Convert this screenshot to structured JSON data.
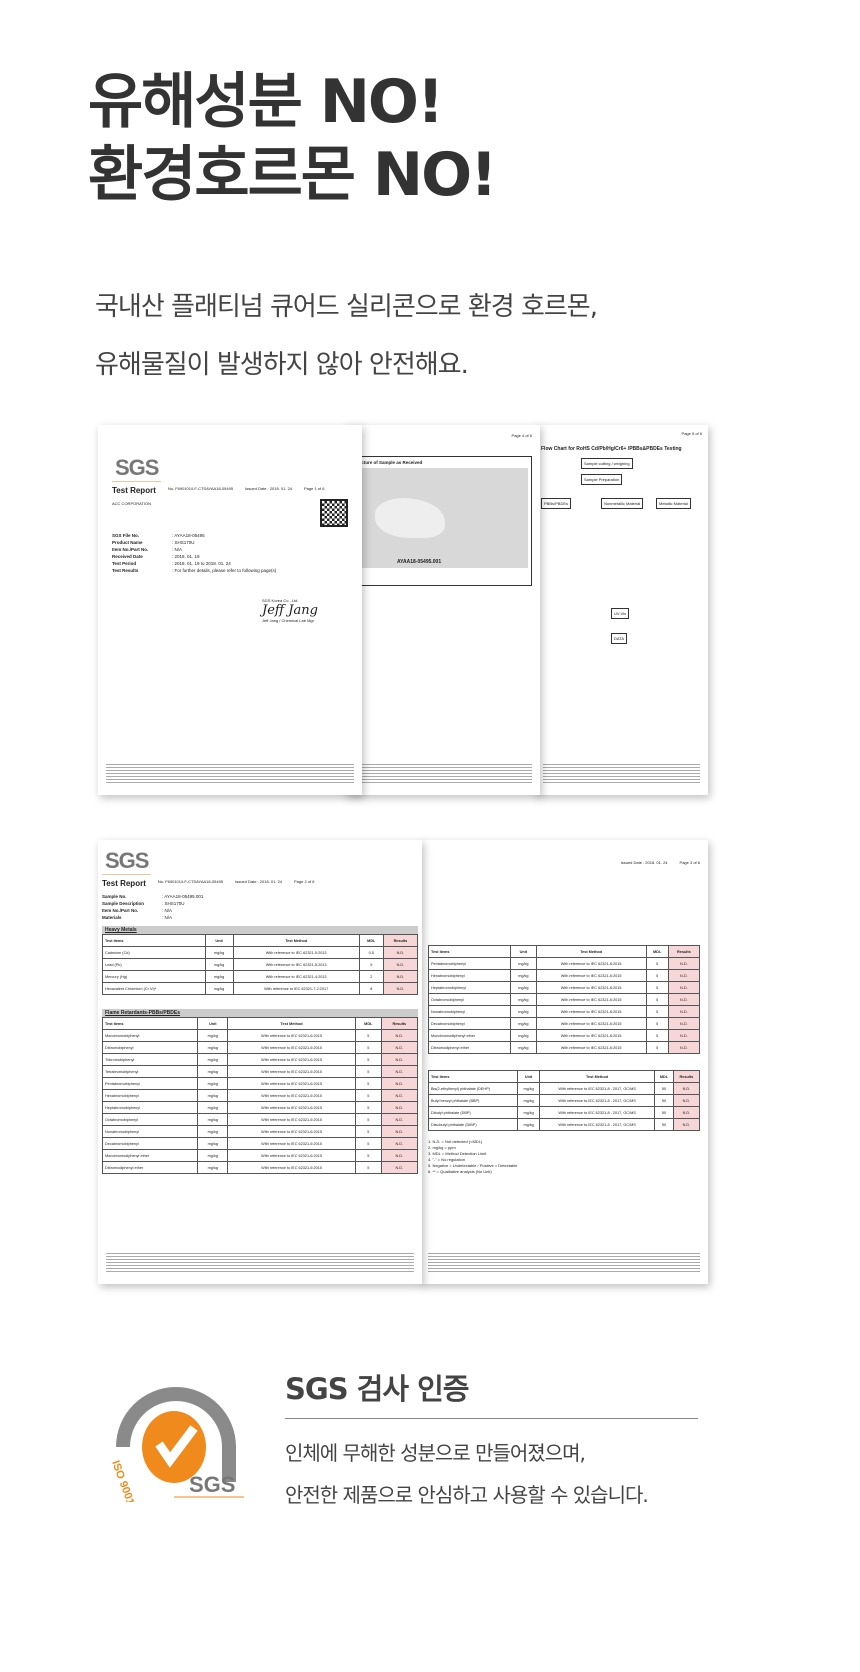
{
  "headline": {
    "line1": "유해성분 NO!",
    "line2": "환경호르몬 NO!"
  },
  "subtitle": {
    "line1": "국내산 플래티넘 큐어드 실리콘으로 환경 호르몬,",
    "line2": "유해물질이 발생하지 않아 안전해요."
  },
  "doc1": {
    "logo": "SGS",
    "title": "Test Report",
    "report_no": "No. F690101/LF-CTSAYAA18-05495",
    "issued": "Issued Date : 2018. 01. 24",
    "page": "Page 1 of 6",
    "company": "ACC CORPORATION",
    "fields": [
      {
        "k": "SGS File No.",
        "v": ": AYAA18-05495"
      },
      {
        "k": "Product Name",
        "v": ": SHS170U"
      },
      {
        "k": "Item No./Part No.",
        "v": ": N/A"
      },
      {
        "k": "Received Date",
        "v": ": 2018. 01. 19"
      },
      {
        "k": "Test Period",
        "v": ": 2018. 01. 19  to  2018. 01. 24"
      },
      {
        "k": "Test Results",
        "v": ": For further details, please refer to following page(s)"
      }
    ],
    "signer": "SGS Korea Co., Ltd.",
    "signature": "Jeff Jang",
    "sign_title": "Jeff Jang / Chemical Lab Mgr"
  },
  "doc2": {
    "page": "Page 4 of 6",
    "caption": "Picture of Sample as Received",
    "sample_id": "AYAA18-05495.001"
  },
  "doc3": {
    "page": "Page 5 of 6",
    "title": "Flow Chart for RoHS Cd/Pb/Hg/Cr6+ /PBBs&PBDEs Testing",
    "boxes": [
      "Sample cutting / weighing",
      "Sample Preparation",
      "PBBs/PBDEs",
      "Nonmetallic Material",
      "Metallic Material",
      "UV-Vis",
      "DATA"
    ]
  },
  "doc4": {
    "logo": "SGS",
    "title": "Test Report",
    "report_no": "No. F690101/LF-CTSAYAA18-05495",
    "issued": "Issued Date : 2018. 01. 24",
    "page": "Page 2 of 6",
    "fields": [
      {
        "k": "Sample No.",
        "v": ": AYAA18-05495.001"
      },
      {
        "k": "Sample Description",
        "v": ": SHS170U"
      },
      {
        "k": "Item No./Part No.",
        "v": ": N/A"
      },
      {
        "k": "Materials",
        "v": ": N/A"
      }
    ],
    "section1": "Heavy Metals",
    "section2": "Flame Retardants-PBBs/PBDEs",
    "headers": [
      "Test Items",
      "Unit",
      "Test Method",
      "MDL",
      "Results"
    ],
    "metals": [
      [
        "Cadmium (Cd)",
        "mg/kg",
        "With reference to IEC 62321-5:2013",
        "0.5",
        "N.D."
      ],
      [
        "Lead (Pb)",
        "mg/kg",
        "With reference to IEC 62321-5:2013",
        "5",
        "N.D."
      ],
      [
        "Mercury (Hg)",
        "mg/kg",
        "With reference to IEC 62321-4:2013",
        "2",
        "N.D."
      ],
      [
        "Hexavalent Chromium (Cr VI)*",
        "mg/kg",
        "With reference to IEC 62321-7-2:2017",
        "8",
        "N.D."
      ]
    ],
    "pbbs": [
      "Monobromobiphenyl",
      "Dibromobiphenyl",
      "Tribromobiphenyl",
      "Tetrabromobiphenyl",
      "Pentabromobiphenyl",
      "Hexabromobiphenyl",
      "Heptabromobiphenyl",
      "Octabromobiphenyl",
      "Nonabromobiphenyl",
      "Decabromobiphenyl",
      "Monobromodiphenyl ether",
      "Dibromodiphenyl ether"
    ]
  },
  "doc5": {
    "page": "Page 3 of 6",
    "issued": "Issued Date : 2018. 01. 24",
    "phthalates": [
      [
        "Bis(2-ethylhexyl) phthalate (DEHP)",
        "mg/kg",
        "With reference to IEC 62321-8 : 2017, GC/MS",
        "50",
        "N.D."
      ],
      [
        "Butyl benzyl phthalate (BBP)",
        "mg/kg",
        "With reference to IEC 62321-8 : 2017, GC/MS",
        "50",
        "N.D."
      ],
      [
        "Dibutyl phthalate (DBP)",
        "mg/kg",
        "With reference to IEC 62321-8 : 2017, GC/MS",
        "50",
        "N.D."
      ],
      [
        "Diisobutyl phthalate (DIBP)",
        "mg/kg",
        "With reference to IEC 62321-8 : 2017, GC/MS",
        "50",
        "N.D."
      ]
    ],
    "notes": [
      "1. N.D. = Not detected (<MDL)",
      "2. mg/kg = ppm",
      "3. MDL = Method Detection Limit",
      "4. \"-\" = No regulation",
      "5. Negative = Undetectable / Positive = Detectable",
      "6. ** = Qualitative analysis (No Unit)"
    ]
  },
  "cert": {
    "logo_ring": "CERTIFICATION DE SYSTEME",
    "logo_iso": "ISO 9001",
    "logo_brand": "SGS",
    "title": "SGS 검사 인증",
    "line1": "인체에 무해한 성분으로 만들어졌으며,",
    "line2": "안전한 제품으로 안심하고 사용할 수 있습니다."
  },
  "colors": {
    "accent": "#f08a1c",
    "text": "#333333",
    "result_cell": "#f6d6d6"
  }
}
